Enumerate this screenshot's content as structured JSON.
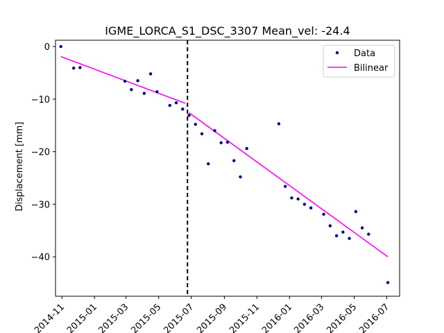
{
  "chart_data": {
    "type": "scatter",
    "title": "IGME_LORCA_S1_DSC_3307     Mean_vel: -24.4",
    "xlabel": "",
    "ylabel": "Displacement [mm]",
    "x_ticks": [
      "2014-11",
      "2015-01",
      "2015-03",
      "2015-05",
      "2015-07",
      "2015-09",
      "2015-11",
      "2016-01",
      "2016-03",
      "2016-05",
      "2016-07"
    ],
    "y_ticks": [
      0,
      -10,
      -20,
      -30,
      -40
    ],
    "xlim": [
      "2014-10-20",
      "2016-07-25"
    ],
    "ylim": [
      -47.5,
      1.2
    ],
    "grid": false,
    "legend_position": "top-right",
    "series": [
      {
        "name": "Data",
        "kind": "scatter",
        "color": "#000080",
        "points": [
          {
            "x": "2014-10-30",
            "y": 0.0
          },
          {
            "x": "2014-11-23",
            "y": -4.1
          },
          {
            "x": "2014-12-05",
            "y": -4.0
          },
          {
            "x": "2015-02-27",
            "y": -6.6
          },
          {
            "x": "2015-03-11",
            "y": -8.2
          },
          {
            "x": "2015-03-23",
            "y": -6.5
          },
          {
            "x": "2015-04-04",
            "y": -8.9
          },
          {
            "x": "2015-04-16",
            "y": -5.2
          },
          {
            "x": "2015-04-28",
            "y": -8.6
          },
          {
            "x": "2015-05-22",
            "y": -11.2
          },
          {
            "x": "2015-06-03",
            "y": -10.7
          },
          {
            "x": "2015-06-15",
            "y": -11.9
          },
          {
            "x": "2015-06-27",
            "y": -13.1
          },
          {
            "x": "2015-07-09",
            "y": -14.8
          },
          {
            "x": "2015-07-21",
            "y": -16.6
          },
          {
            "x": "2015-08-02",
            "y": -22.3
          },
          {
            "x": "2015-08-14",
            "y": -16.0
          },
          {
            "x": "2015-08-26",
            "y": -18.3
          },
          {
            "x": "2015-09-07",
            "y": -18.2
          },
          {
            "x": "2015-09-19",
            "y": -21.7
          },
          {
            "x": "2015-10-01",
            "y": -24.8
          },
          {
            "x": "2015-10-13",
            "y": -19.4
          },
          {
            "x": "2015-12-12",
            "y": -14.7
          },
          {
            "x": "2015-12-24",
            "y": -26.6
          },
          {
            "x": "2016-01-05",
            "y": -28.8
          },
          {
            "x": "2016-01-17",
            "y": -29.0
          },
          {
            "x": "2016-01-29",
            "y": -30.0
          },
          {
            "x": "2016-02-10",
            "y": -30.7
          },
          {
            "x": "2016-03-05",
            "y": -31.9
          },
          {
            "x": "2016-03-17",
            "y": -34.1
          },
          {
            "x": "2016-03-29",
            "y": -36.0
          },
          {
            "x": "2016-04-10",
            "y": -35.3
          },
          {
            "x": "2016-04-22",
            "y": -36.5
          },
          {
            "x": "2016-05-04",
            "y": -31.4
          },
          {
            "x": "2016-05-16",
            "y": -34.5
          },
          {
            "x": "2016-05-28",
            "y": -35.7
          },
          {
            "x": "2016-07-03",
            "y": -44.9
          }
        ]
      },
      {
        "name": "Bilinear",
        "kind": "line",
        "color": "#ff00ff",
        "segments": [
          [
            {
              "x": "2014-10-30",
              "y": -1.9
            },
            {
              "x": "2015-06-20",
              "y": -10.8
            }
          ],
          [
            {
              "x": "2015-06-27",
              "y": -12.6
            },
            {
              "x": "2016-07-03",
              "y": -40.0
            }
          ]
        ]
      }
    ],
    "breakpoint": {
      "x": "2015-06-24",
      "style": "dashed",
      "color": "#000000"
    }
  }
}
